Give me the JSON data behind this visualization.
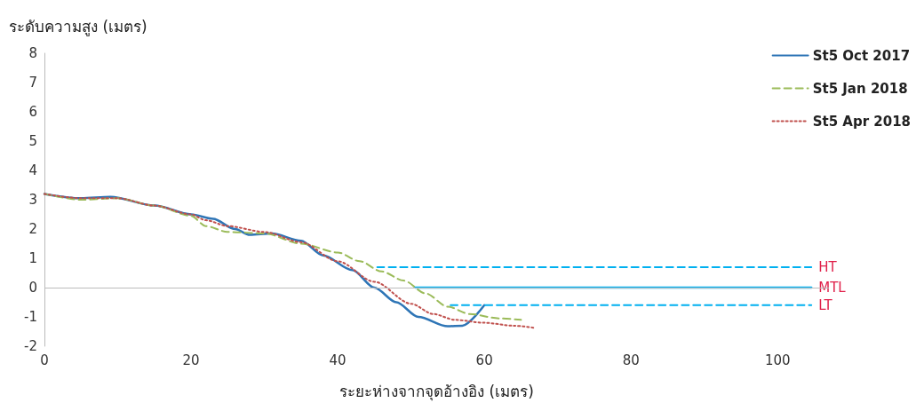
{
  "chart_data": {
    "type": "line",
    "ylabel": "ระดับความสูง (เมตร)",
    "xlabel": "ระยะห่างจากจุดอ้างอิง (เมตร)",
    "xlim": [
      0,
      107
    ],
    "xticks": [
      0,
      20,
      40,
      60,
      80,
      100
    ],
    "ylim": [
      -2,
      8
    ],
    "yticks": [
      -2,
      -1,
      0,
      1,
      2,
      3,
      4,
      5,
      6,
      7,
      8
    ],
    "legend": "top right",
    "marker": "none",
    "ref_lines": [
      {
        "axis": "y",
        "value": 0,
        "color": "#bbbbbb",
        "line_style": "solid"
      }
    ],
    "series": [
      {
        "name": "St5 Oct 2017",
        "color": "#2e75b6",
        "line_style": "solid",
        "x": [
          0,
          5,
          9,
          15,
          20,
          23,
          26,
          28,
          31,
          35,
          38,
          42,
          45,
          48,
          51,
          55,
          57,
          60
        ],
        "values": [
          3.2,
          3.05,
          3.1,
          2.8,
          2.5,
          2.35,
          2.0,
          1.8,
          1.85,
          1.6,
          1.1,
          0.6,
          0.0,
          -0.5,
          -1.0,
          -1.32,
          -1.3,
          -0.6
        ]
      },
      {
        "name": "St5 Jan 2018",
        "color": "#9bbb59",
        "line_style": "dashed",
        "x": [
          0,
          5,
          10,
          15,
          20,
          22,
          25,
          30,
          35,
          40,
          43,
          46,
          49,
          52,
          55,
          58,
          62,
          65
        ],
        "values": [
          3.2,
          3.0,
          3.05,
          2.8,
          2.45,
          2.1,
          1.9,
          1.85,
          1.5,
          1.2,
          0.9,
          0.55,
          0.24,
          -0.2,
          -0.65,
          -0.9,
          -1.05,
          -1.1
        ]
      },
      {
        "name": "St5 Apr 2018",
        "color": "#c0504d",
        "line_style": "dotted",
        "x": [
          0,
          5,
          10,
          15,
          20,
          22,
          25,
          30,
          35,
          40,
          45,
          50,
          53,
          56,
          60,
          64,
          67
        ],
        "values": [
          3.2,
          3.05,
          3.05,
          2.8,
          2.5,
          2.3,
          2.1,
          1.9,
          1.55,
          0.9,
          0.2,
          -0.55,
          -0.9,
          -1.1,
          -1.2,
          -1.3,
          -1.38
        ]
      },
      {
        "color": "#00b0f0",
        "line_style": "dashed",
        "x": [
          45.4,
          104.6
        ],
        "values": [
          0.7,
          0.7
        ]
      },
      {
        "color": "#00b0f0",
        "line_style": "solid",
        "x": [
          50.6,
          104.6
        ],
        "values": [
          0,
          0
        ]
      },
      {
        "color": "#00b0f0",
        "line_style": "dashed",
        "x": [
          55.4,
          104.6
        ],
        "values": [
          -0.6,
          -0.6
        ]
      }
    ],
    "annotations": [
      "HT",
      "MTL",
      "LT"
    ]
  }
}
